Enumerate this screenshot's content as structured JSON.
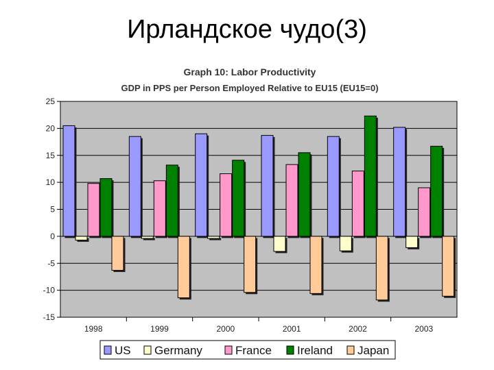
{
  "slide": {
    "title": "Ирландское чудо(3)"
  },
  "colors": {
    "US": "#9999ff",
    "Germany": "#ffffcc",
    "France": "#ff99cc",
    "Ireland": "#008000",
    "Japan": "#ffcc99",
    "plot_bg": "#c0c0c0"
  },
  "chart_data": {
    "type": "bar",
    "title": "Graph 10: Labor Productivity",
    "subtitle": "GDP in PPS per Person Employed Relative to EU15 (EU15=0)",
    "categories": [
      "1998",
      "1999",
      "2000",
      "2001",
      "2002",
      "2003"
    ],
    "ylim": [
      -15,
      25
    ],
    "yticks": [
      "25",
      "20",
      "15",
      "10",
      "5",
      "0",
      "-5",
      "-10",
      "-15"
    ],
    "grid": true,
    "legend_position": "bottom",
    "series": [
      {
        "name": "US",
        "values": [
          20.5,
          18.5,
          19.0,
          18.7,
          18.5,
          20.2
        ]
      },
      {
        "name": "Germany",
        "values": [
          -0.7,
          -0.4,
          -0.4,
          -2.8,
          -2.7,
          -2.1
        ]
      },
      {
        "name": "France",
        "values": [
          9.8,
          10.3,
          11.6,
          13.3,
          12.1,
          9.0
        ]
      },
      {
        "name": "Ireland",
        "values": [
          10.7,
          13.2,
          14.1,
          15.5,
          22.3,
          16.7
        ]
      },
      {
        "name": "Japan",
        "values": [
          -6.3,
          -11.4,
          -10.4,
          -10.6,
          -11.8,
          -11.1
        ]
      }
    ]
  }
}
